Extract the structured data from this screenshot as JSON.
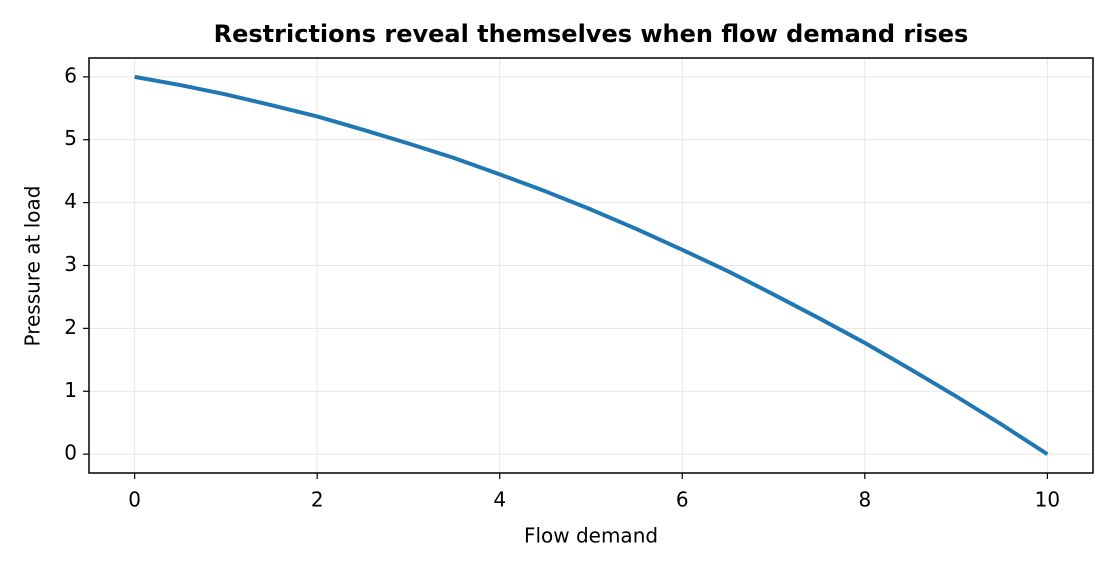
{
  "chart_data": {
    "type": "line",
    "title": "Restrictions reveal themselves when flow demand rises",
    "xlabel": "Flow demand",
    "ylabel": "Pressure at load",
    "x": [
      0,
      0.5,
      1,
      1.5,
      2,
      2.5,
      3,
      3.5,
      4,
      4.5,
      5,
      5.5,
      6,
      6.5,
      7,
      7.5,
      8,
      8.5,
      9,
      9.5,
      10
    ],
    "series": [
      {
        "color": "#1f77b4",
        "values": [
          6,
          5.87,
          5.72,
          5.55,
          5.37,
          5.16,
          4.94,
          4.71,
          4.45,
          4.18,
          3.89,
          3.58,
          3.25,
          2.91,
          2.54,
          2.16,
          1.77,
          1.35,
          0.92,
          0.47,
          0
        ]
      }
    ],
    "xlim": [
      -0.5,
      10.5
    ],
    "ylim": [
      -0.3,
      6.3
    ],
    "xticks": [
      0,
      2,
      4,
      6,
      8,
      10
    ],
    "yticks": [
      0,
      1,
      2,
      3,
      4,
      5,
      6
    ],
    "grid": true
  }
}
